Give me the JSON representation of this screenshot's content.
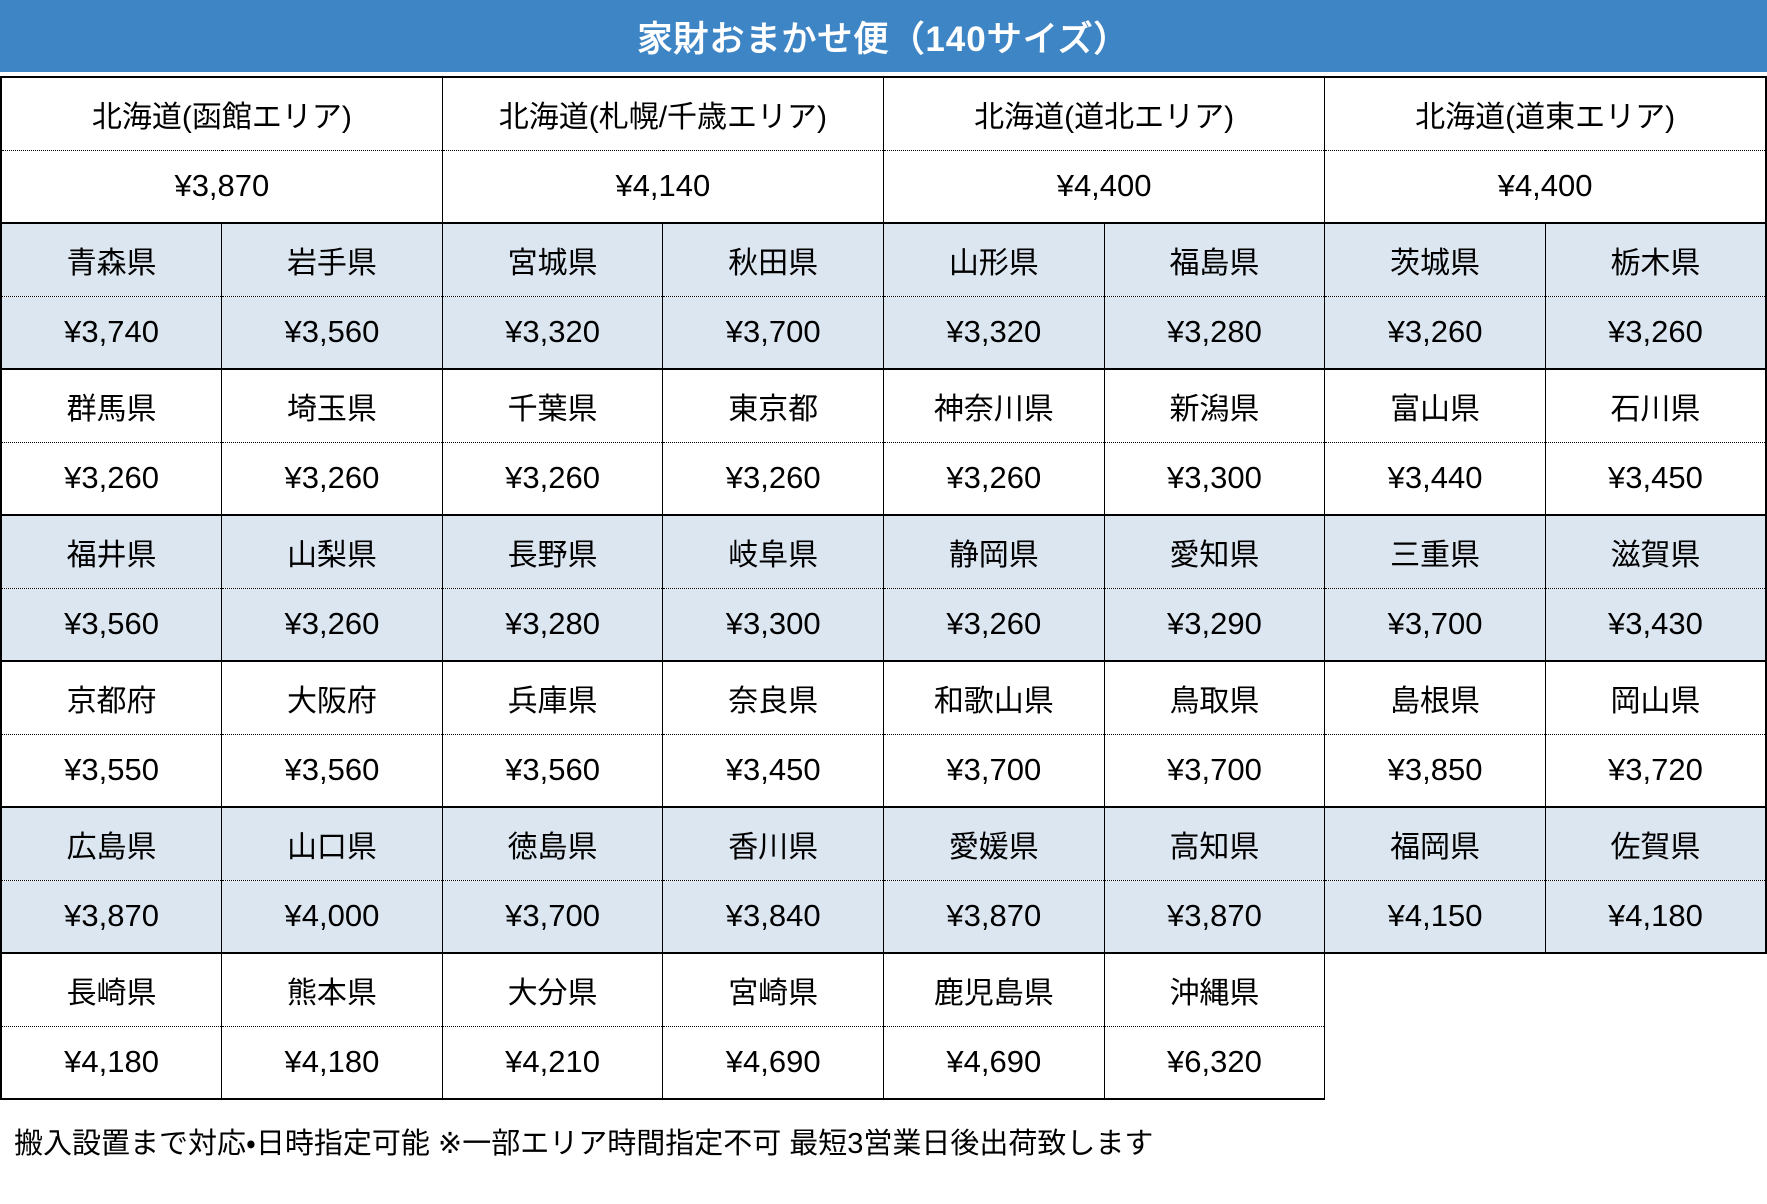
{
  "title": "家財おまかせ便（140サイズ）",
  "colors": {
    "header_bg": "#3e85c6",
    "header_text": "#ffffff",
    "shaded_row_bg": "#dce6f1",
    "row_bg": "#ffffff",
    "border": "#000000",
    "text": "#000000"
  },
  "hokkaido_areas": [
    {
      "name": "北海道(函館エリア)",
      "price": "¥3,870"
    },
    {
      "name": "北海道(札幌/千歳エリア)",
      "price": "¥4,140"
    },
    {
      "name": "北海道(道北エリア)",
      "price": "¥4,400"
    },
    {
      "name": "北海道(道東エリア)",
      "price": "¥4,400"
    }
  ],
  "prefecture_groups": [
    {
      "shaded": true,
      "cells": [
        {
          "name": "青森県",
          "price": "¥3,740"
        },
        {
          "name": "岩手県",
          "price": "¥3,560"
        },
        {
          "name": "宮城県",
          "price": "¥3,320"
        },
        {
          "name": "秋田県",
          "price": "¥3,700"
        },
        {
          "name": "山形県",
          "price": "¥3,320"
        },
        {
          "name": "福島県",
          "price": "¥3,280"
        },
        {
          "name": "茨城県",
          "price": "¥3,260"
        },
        {
          "name": "栃木県",
          "price": "¥3,260"
        }
      ]
    },
    {
      "shaded": false,
      "cells": [
        {
          "name": "群馬県",
          "price": "¥3,260"
        },
        {
          "name": "埼玉県",
          "price": "¥3,260"
        },
        {
          "name": "千葉県",
          "price": "¥3,260"
        },
        {
          "name": "東京都",
          "price": "¥3,260"
        },
        {
          "name": "神奈川県",
          "price": "¥3,260"
        },
        {
          "name": "新潟県",
          "price": "¥3,300"
        },
        {
          "name": "富山県",
          "price": "¥3,440"
        },
        {
          "name": "石川県",
          "price": "¥3,450"
        }
      ]
    },
    {
      "shaded": true,
      "cells": [
        {
          "name": "福井県",
          "price": "¥3,560"
        },
        {
          "name": "山梨県",
          "price": "¥3,260"
        },
        {
          "name": "長野県",
          "price": "¥3,280"
        },
        {
          "name": "岐阜県",
          "price": "¥3,300"
        },
        {
          "name": "静岡県",
          "price": "¥3,260"
        },
        {
          "name": "愛知県",
          "price": "¥3,290"
        },
        {
          "name": "三重県",
          "price": "¥3,700"
        },
        {
          "name": "滋賀県",
          "price": "¥3,430"
        }
      ]
    },
    {
      "shaded": false,
      "cells": [
        {
          "name": "京都府",
          "price": "¥3,550"
        },
        {
          "name": "大阪府",
          "price": "¥3,560"
        },
        {
          "name": "兵庫県",
          "price": "¥3,560"
        },
        {
          "name": "奈良県",
          "price": "¥3,450"
        },
        {
          "name": "和歌山県",
          "price": "¥3,700"
        },
        {
          "name": "鳥取県",
          "price": "¥3,700"
        },
        {
          "name": "島根県",
          "price": "¥3,850"
        },
        {
          "name": "岡山県",
          "price": "¥3,720"
        }
      ]
    },
    {
      "shaded": true,
      "cells": [
        {
          "name": "広島県",
          "price": "¥3,870"
        },
        {
          "name": "山口県",
          "price": "¥4,000"
        },
        {
          "name": "徳島県",
          "price": "¥3,700"
        },
        {
          "name": "香川県",
          "price": "¥3,840"
        },
        {
          "name": "愛媛県",
          "price": "¥3,870"
        },
        {
          "name": "高知県",
          "price": "¥3,870"
        },
        {
          "name": "福岡県",
          "price": "¥4,150"
        },
        {
          "name": "佐賀県",
          "price": "¥4,180"
        }
      ]
    },
    {
      "shaded": false,
      "cells": [
        {
          "name": "長崎県",
          "price": "¥4,180"
        },
        {
          "name": "熊本県",
          "price": "¥4,180"
        },
        {
          "name": "大分県",
          "price": "¥4,210"
        },
        {
          "name": "宮崎県",
          "price": "¥4,690"
        },
        {
          "name": "鹿児島県",
          "price": "¥4,690"
        },
        {
          "name": "沖縄県",
          "price": "¥6,320"
        }
      ]
    }
  ],
  "footer_note": "搬入設置まで対応・日時指定可能 ※一部エリア時間指定不可 最短3営業日後出荷致します"
}
